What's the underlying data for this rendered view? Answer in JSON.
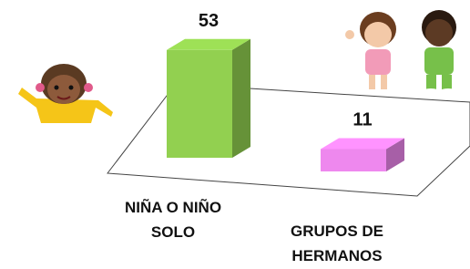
{
  "chart_data": {
    "type": "bar3d",
    "categories": [
      "NIÑA O NIÑO SOLO",
      "GRUPOS DE HERMANOS"
    ],
    "values": [
      53,
      11
    ],
    "colors": [
      "#92d050",
      "#ee88ee"
    ]
  }
}
